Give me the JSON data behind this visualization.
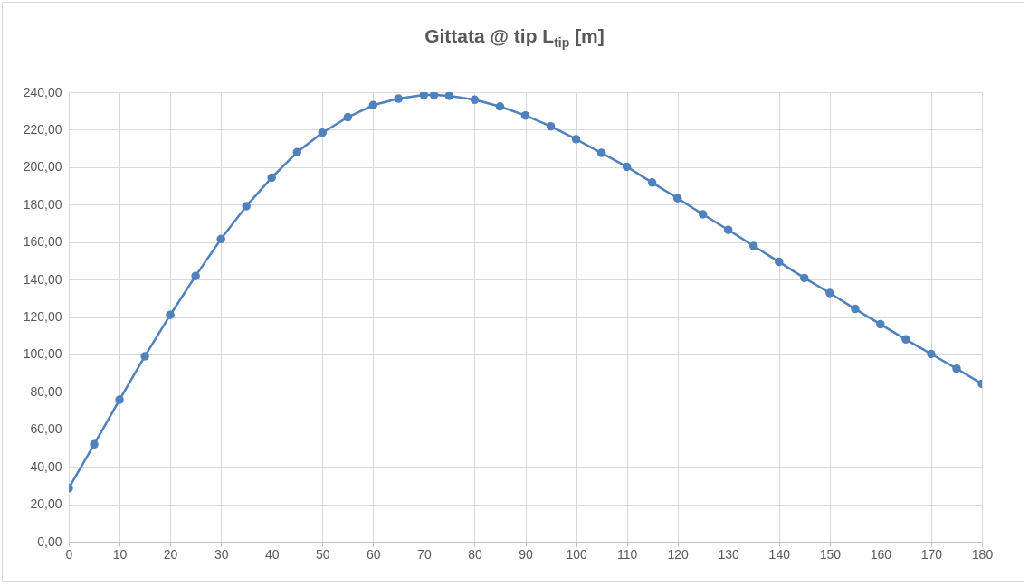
{
  "chart_data": {
    "type": "line",
    "title": "Gittata @ tip L$_{tip}$ [m]",
    "x": [
      0,
      5,
      10,
      15,
      20,
      25,
      30,
      35,
      40,
      45,
      50,
      55,
      60,
      65,
      70,
      72,
      75,
      80,
      85,
      90,
      95,
      100,
      105,
      110,
      115,
      120,
      125,
      130,
      135,
      140,
      145,
      150,
      155,
      160,
      165,
      170,
      175,
      180
    ],
    "series": [
      {
        "color": "#4f81bd",
        "values": [
          28.6,
          52.0,
          75.8,
          99.0,
          121.1,
          141.9,
          161.6,
          179.2,
          194.4,
          208.0,
          218.4,
          226.7,
          233.1,
          236.6,
          238.5,
          238.5,
          238.1,
          236.0,
          232.4,
          227.6,
          221.8,
          214.9,
          207.6,
          200.2,
          191.8,
          183.4,
          174.8,
          166.5,
          157.9,
          149.4,
          140.8,
          132.8,
          124.3,
          116.1,
          108.0,
          100.2,
          92.4,
          84.3
        ]
      }
    ],
    "xlim": [
      0,
      180
    ],
    "xticks": [
      0,
      10,
      20,
      30,
      40,
      50,
      60,
      70,
      80,
      90,
      100,
      110,
      120,
      130,
      140,
      150,
      160,
      170,
      180
    ],
    "ylim": [
      0,
      240
    ],
    "yticks": [
      {
        "value": 0,
        "label": "0,00"
      },
      {
        "value": 20,
        "label": "20,00"
      },
      {
        "value": 40,
        "label": "40,00"
      },
      {
        "value": 60,
        "label": "60,00"
      },
      {
        "value": 80,
        "label": "80,00"
      },
      {
        "value": 100,
        "label": "100,00"
      },
      {
        "value": 120,
        "label": "120,00"
      },
      {
        "value": 140,
        "label": "140,00"
      },
      {
        "value": 160,
        "label": "160,00"
      },
      {
        "value": 180,
        "label": "180,00"
      },
      {
        "value": 200,
        "label": "200,00"
      },
      {
        "value": 220,
        "label": "220,00"
      },
      {
        "value": 240,
        "label": "240,00"
      }
    ],
    "grid": true,
    "marker": "circle",
    "line_style": "solid",
    "legend": false
  }
}
